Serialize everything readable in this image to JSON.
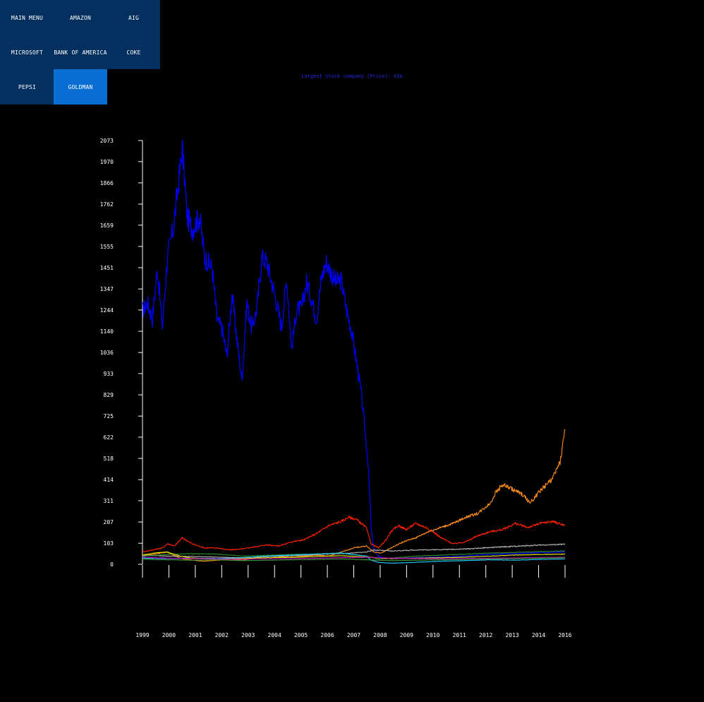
{
  "menu": {
    "items": [
      {
        "label": "MAIN MENU",
        "active": false
      },
      {
        "label": "AMAZON",
        "active": false
      },
      {
        "label": "AIG",
        "active": false
      },
      {
        "label": "MICROSOFT",
        "active": false
      },
      {
        "label": "BANK OF AMERICA",
        "active": false
      },
      {
        "label": "COKE",
        "active": false
      },
      {
        "label": "PEPSI",
        "active": false
      },
      {
        "label": "GOLDMAN",
        "active": true
      }
    ],
    "colors": {
      "background": "#03305f",
      "active": "#0a6fd4",
      "text": "#ffffff"
    }
  },
  "chart_data": {
    "type": "line",
    "title": "Largest Stock company (Price): AIG",
    "xlabel": "",
    "ylabel": "",
    "ylim": [
      0,
      2073
    ],
    "xlim": [
      1999,
      2016
    ],
    "yticks": [
      0,
      103,
      207,
      311,
      414,
      518,
      622,
      725,
      829,
      933,
      1036,
      1140,
      1244,
      1347,
      1451,
      1555,
      1659,
      1762,
      1866,
      1970,
      2073
    ],
    "xticks": [
      "1999",
      "2000",
      "2001",
      "2002",
      "2003",
      "2004",
      "2005",
      "2006",
      "2007",
      "2008",
      "2009",
      "2010",
      "2011",
      "2012",
      "2013",
      "2014",
      "2016"
    ],
    "grid": false,
    "legend": "none",
    "series": [
      {
        "color": "#0000ee",
        "x": [
          1999.0,
          1999.2,
          1999.4,
          1999.6,
          1999.8,
          2000.0,
          2000.25,
          2000.5,
          2000.6,
          2000.8,
          2001.0,
          2001.3,
          2001.5,
          2001.8,
          2002.0,
          2002.2,
          2002.4,
          2002.6,
          2002.8,
          2003.0,
          2003.2,
          2003.4,
          2003.6,
          2003.8,
          2004.0,
          2004.3,
          2004.6,
          2004.8,
          2005.0,
          2005.2,
          2005.4,
          2005.6,
          2005.8,
          2006.0,
          2006.2,
          2006.4,
          2006.6,
          2006.8,
          2007.0,
          2007.2,
          2007.4,
          2007.6,
          2007.8,
          2008.0,
          2008.1,
          2008.2,
          2008.3,
          2008.5,
          2008.7,
          2009.0,
          2009.5,
          2010.0,
          2010.5,
          2011.0,
          2011.5,
          2012.0,
          2012.5,
          2013.0,
          2013.5,
          2014.0,
          2014.5,
          2015.0,
          2015.5,
          2016.0
        ],
        "values": [
          1240,
          1280,
          1200,
          1450,
          1160,
          1500,
          1650,
          1920,
          2040,
          1700,
          1640,
          1700,
          1500,
          1450,
          1200,
          1150,
          1020,
          1320,
          1100,
          900,
          1280,
          1150,
          1250,
          1500,
          1480,
          1330,
          1160,
          1400,
          1050,
          1250,
          1250,
          1380,
          1300,
          1200,
          1400,
          1480,
          1420,
          1380,
          1390,
          1250,
          1150,
          1000,
          840,
          600,
          450,
          180,
          80,
          40,
          30,
          28,
          30,
          32,
          34,
          36,
          38,
          40,
          45,
          48,
          50,
          52,
          55,
          57,
          58,
          60
        ]
      },
      {
        "color": "#ff2000",
        "x": [
          1999.0,
          1999.4,
          1999.8,
          2000.0,
          2000.3,
          2000.6,
          2001.0,
          2001.5,
          2002.0,
          2002.5,
          2003.0,
          2003.5,
          2004.0,
          2004.5,
          2005.0,
          2005.5,
          2006.0,
          2006.5,
          2007.0,
          2007.3,
          2007.6,
          2008.0,
          2008.2,
          2008.5,
          2008.8,
          2009.0,
          2009.3,
          2009.6,
          2010.0,
          2010.4,
          2010.8,
          2011.0,
          2011.5,
          2012.0,
          2012.5,
          2013.0,
          2013.5,
          2014.0,
          2014.5,
          2015.0,
          2015.5,
          2016.0
        ],
        "values": [
          60,
          70,
          80,
          100,
          90,
          130,
          100,
          80,
          80,
          70,
          75,
          85,
          95,
          90,
          110,
          120,
          150,
          190,
          210,
          230,
          220,
          180,
          100,
          80,
          120,
          160,
          190,
          170,
          200,
          180,
          150,
          130,
          100,
          110,
          140,
          160,
          170,
          200,
          180,
          200,
          210,
          190
        ]
      },
      {
        "color": "#ff8c1a",
        "x": [
          1999.0,
          1999.5,
          2000.0,
          2000.5,
          2001.0,
          2001.5,
          2002.0,
          2002.5,
          2003.0,
          2003.5,
          2004.0,
          2004.5,
          2005.0,
          2005.5,
          2006.0,
          2006.5,
          2007.0,
          2007.5,
          2008.0,
          2008.3,
          2008.6,
          2009.0,
          2009.5,
          2010.0,
          2010.5,
          2011.0,
          2011.5,
          2012.0,
          2012.5,
          2013.0,
          2013.2,
          2013.5,
          2014.0,
          2014.3,
          2014.6,
          2015.0,
          2015.5,
          2015.8,
          2016.0
        ],
        "values": [
          40,
          50,
          60,
          30,
          20,
          15,
          20,
          25,
          20,
          30,
          40,
          38,
          35,
          40,
          45,
          40,
          60,
          80,
          90,
          60,
          55,
          80,
          110,
          130,
          160,
          180,
          200,
          230,
          250,
          300,
          350,
          390,
          360,
          340,
          300,
          360,
          420,
          500,
          660
        ]
      },
      {
        "color": "#b5b5b5",
        "x": [
          1999.0,
          2000.0,
          2001.0,
          2002.0,
          2003.0,
          2004.0,
          2005.0,
          2006.0,
          2007.0,
          2008.0,
          2008.3,
          2009.0,
          2010.0,
          2011.0,
          2012.0,
          2013.0,
          2014.0,
          2015.0,
          2016.0
        ],
        "values": [
          45,
          40,
          38,
          35,
          32,
          38,
          42,
          48,
          52,
          60,
          70,
          65,
          70,
          72,
          75,
          82,
          88,
          94,
          98
        ]
      },
      {
        "color": "#2e8b2e",
        "x": [
          1999.0,
          2000.0,
          2001.0,
          2002.0,
          2003.0,
          2004.0,
          2005.0,
          2006.0,
          2007.0,
          2008.0,
          2008.5,
          2009.0,
          2010.0,
          2011.0,
          2012.0,
          2013.0,
          2014.0,
          2015.0,
          2016.0
        ],
        "values": [
          40,
          48,
          52,
          50,
          40,
          44,
          48,
          50,
          55,
          40,
          25,
          30,
          40,
          45,
          50,
          55,
          58,
          62,
          65
        ]
      },
      {
        "color": "#20c8ff",
        "x": [
          1999.0,
          2000.0,
          2001.0,
          2002.0,
          2003.0,
          2004.0,
          2005.0,
          2006.0,
          2007.0,
          2008.0,
          2008.2,
          2008.5,
          2009.0,
          2010.0,
          2011.0,
          2012.0,
          2013.0,
          2014.0,
          2015.0,
          2016.0
        ],
        "values": [
          30,
          28,
          30,
          28,
          32,
          40,
          45,
          50,
          55,
          40,
          20,
          10,
          5,
          10,
          15,
          18,
          22,
          20,
          24,
          26
        ]
      },
      {
        "color": "#e6e600",
        "x": [
          1999.0,
          1999.5,
          2000.0,
          2000.5,
          2001.0,
          2002.0,
          2003.0,
          2004.0,
          2005.0,
          2006.0,
          2007.0,
          2008.0,
          2009.0,
          2010.0,
          2011.0,
          2012.0,
          2013.0,
          2014.0,
          2015.0,
          2016.0
        ],
        "values": [
          45,
          55,
          60,
          40,
          30,
          25,
          28,
          32,
          34,
          38,
          42,
          35,
          28,
          30,
          32,
          35,
          40,
          45,
          48,
          50
        ]
      },
      {
        "color": "#c000c0",
        "x": [
          1999.0,
          2000.0,
          2001.0,
          2002.0,
          2003.0,
          2004.0,
          2005.0,
          2006.0,
          2007.0,
          2008.0,
          2009.0,
          2010.0,
          2011.0,
          2012.0,
          2013.0,
          2014.0,
          2015.0,
          2016.0
        ],
        "values": [
          35,
          30,
          28,
          26,
          25,
          27,
          28,
          30,
          32,
          34,
          30,
          28,
          27,
          28,
          30,
          31,
          33,
          35
        ]
      },
      {
        "color": "#3a9a3a",
        "x": [
          1999.0,
          2000.0,
          2001.0,
          2002.0,
          2003.0,
          2004.0,
          2005.0,
          2006.0,
          2007.0,
          2008.0,
          2009.0,
          2010.0,
          2011.0,
          2012.0,
          2013.0,
          2014.0,
          2015.0,
          2016.0
        ],
        "values": [
          25,
          22,
          20,
          22,
          18,
          20,
          22,
          24,
          26,
          22,
          18,
          20,
          22,
          24,
          26,
          28,
          30,
          32
        ]
      }
    ]
  }
}
